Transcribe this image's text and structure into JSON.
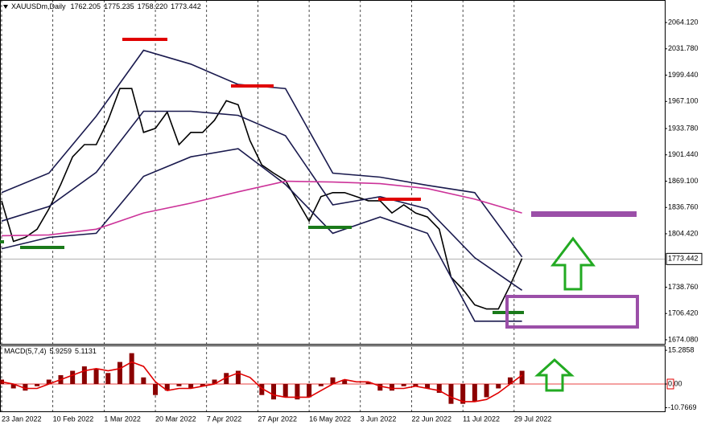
{
  "chart_data": [
    {
      "type": "line",
      "title": "XAUUSDm,Daily",
      "ohlc_labels": [
        "1762.205",
        "1775.235",
        "1758.220",
        "1773.442"
      ],
      "xlim": [
        0,
        168
      ],
      "xticks": [
        {
          "value": 0,
          "label": "23 Jan 2022"
        },
        {
          "value": 13,
          "label": "10 Feb 2022"
        },
        {
          "value": 26,
          "label": "1 Mar 2022"
        },
        {
          "value": 39,
          "label": "20 Mar 2022"
        },
        {
          "value": 52,
          "label": "7 Apr 2022"
        },
        {
          "value": 65,
          "label": "27 Apr 2022"
        },
        {
          "value": 78,
          "label": "16 May 2022"
        },
        {
          "value": 91,
          "label": "3 Jun 2022"
        },
        {
          "value": 104,
          "label": "22 Jun 2022"
        },
        {
          "value": 117,
          "label": "11 Jul 2022"
        },
        {
          "value": 130,
          "label": "29 Jul 2022"
        }
      ],
      "ylim": [
        1669.1,
        2091.8
      ],
      "yticks": [
        {
          "value": 2064.12,
          "label": "2064.120"
        },
        {
          "value": 2031.78,
          "label": "2031.780"
        },
        {
          "value": 1999.44,
          "label": "1999.440"
        },
        {
          "value": 1967.1,
          "label": "1967.100"
        },
        {
          "value": 1933.78,
          "label": "1933.780"
        },
        {
          "value": 1901.44,
          "label": "1901.440"
        },
        {
          "value": 1869.1,
          "label": "1869.100"
        },
        {
          "value": 1836.76,
          "label": "1836.760"
        },
        {
          "value": 1804.42,
          "label": "1804.420"
        },
        {
          "value": 1738.76,
          "label": "1738.760"
        },
        {
          "value": 1706.42,
          "label": "1706.420"
        },
        {
          "value": 1674.08,
          "label": "1674.080"
        }
      ],
      "last_price": 1773.442,
      "grid": true,
      "series": [
        {
          "color": "#000000",
          "x": [
            0,
            3,
            6,
            9,
            12,
            15,
            18,
            21,
            24,
            27,
            30,
            33,
            36,
            39,
            42,
            45,
            48,
            51,
            54,
            57,
            60,
            63,
            66,
            69,
            72,
            75,
            78,
            81,
            84,
            87,
            90,
            93,
            96,
            99,
            102,
            105,
            108,
            111,
            114,
            117,
            120,
            123,
            126,
            129,
            132
          ],
          "values": [
            1845,
            1795,
            1800,
            1810,
            1835,
            1865,
            1899,
            1914,
            1914,
            1944,
            1983,
            1983,
            1929,
            1934,
            1954,
            1914,
            1929,
            1929,
            1944,
            1968,
            1963,
            1919,
            1889,
            1879,
            1870,
            1845,
            1820,
            1850,
            1855,
            1855,
            1850,
            1845,
            1845,
            1830,
            1840,
            1830,
            1825,
            1810,
            1751,
            1736,
            1717,
            1712,
            1712,
            1741,
            1774
          ]
        },
        {
          "color": "#1a1a4e",
          "x": [
            0,
            12,
            24,
            36,
            48,
            60,
            72,
            84,
            96,
            108,
            120,
            132
          ],
          "values": [
            1855,
            1879,
            1949,
            2030,
            2013,
            1988,
            1983,
            1879,
            1874,
            1864,
            1855,
            1776
          ]
        },
        {
          "color": "#1a1a4e",
          "x": [
            0,
            12,
            24,
            36,
            48,
            60,
            72,
            84,
            96,
            108,
            120,
            132
          ],
          "values": [
            1820,
            1838,
            1880,
            1955,
            1955,
            1950,
            1925,
            1840,
            1850,
            1835,
            1775,
            1735
          ]
        },
        {
          "color": "#1a1a4e",
          "x": [
            0,
            12,
            24,
            36,
            48,
            60,
            72,
            84,
            96,
            108,
            120,
            132
          ],
          "values": [
            1786,
            1800,
            1805,
            1875,
            1899,
            1909,
            1865,
            1805,
            1825,
            1805,
            1697,
            1697
          ]
        },
        {
          "color": "#cc3399",
          "x": [
            0,
            12,
            24,
            36,
            48,
            60,
            72,
            84,
            96,
            108,
            120,
            132
          ],
          "values": [
            1802,
            1803,
            1810,
            1830,
            1842,
            1856,
            1869,
            1868,
            1866,
            1860,
            1847,
            1830
          ]
        }
      ]
    },
    {
      "type": "bar",
      "title": "MACD(5,7,4)",
      "indicator_values": [
        5.9259,
        5.1131
      ],
      "xlim": [
        0,
        168
      ],
      "ylim": [
        -12.4,
        17.5
      ],
      "yticks": [
        15.2858,
        {
          "value": 0,
          "label": "0.00"
        },
        -10.7669
      ],
      "series": [
        {
          "style": "histogram",
          "color": "#8b0000",
          "x": [
            0,
            3,
            6,
            9,
            12,
            15,
            18,
            21,
            24,
            27,
            30,
            33,
            36,
            39,
            42,
            45,
            48,
            51,
            54,
            57,
            60,
            63,
            66,
            69,
            72,
            75,
            78,
            81,
            84,
            87,
            90,
            93,
            96,
            99,
            102,
            105,
            108,
            111,
            114,
            117,
            120,
            123,
            126,
            129,
            132
          ],
          "values": [
            2,
            -2,
            -3,
            -1,
            2,
            4,
            6,
            8,
            7,
            5,
            10,
            14,
            3,
            -5,
            -3,
            -1,
            -2,
            -1,
            2,
            5,
            6,
            0,
            -5,
            -7,
            -6,
            -7,
            -6,
            -1,
            3,
            2,
            0,
            1,
            -3,
            -3,
            -1,
            -1,
            -2,
            -4,
            -9,
            -9,
            -8,
            -6,
            -2,
            3,
            6
          ]
        },
        {
          "style": "line",
          "color": "#e00000",
          "x": [
            0,
            3,
            6,
            9,
            12,
            15,
            18,
            21,
            24,
            27,
            30,
            33,
            36,
            39,
            42,
            45,
            48,
            51,
            54,
            57,
            60,
            63,
            66,
            69,
            72,
            75,
            78,
            81,
            84,
            87,
            90,
            93,
            96,
            99,
            102,
            105,
            108,
            111,
            114,
            117,
            120,
            123,
            126,
            129,
            132
          ],
          "values": [
            1,
            0,
            -2,
            -2,
            0,
            2,
            4,
            6,
            7,
            6,
            7,
            10,
            8,
            1,
            -3,
            -2,
            -2,
            -1,
            0,
            3,
            5,
            3,
            -2,
            -5,
            -6,
            -6,
            -6,
            -3,
            0,
            2,
            1,
            1,
            -1,
            -2,
            -2,
            -1,
            -2,
            -3,
            -6,
            -8,
            -8,
            -7,
            -4,
            0,
            4
          ]
        }
      ]
    }
  ]
}
